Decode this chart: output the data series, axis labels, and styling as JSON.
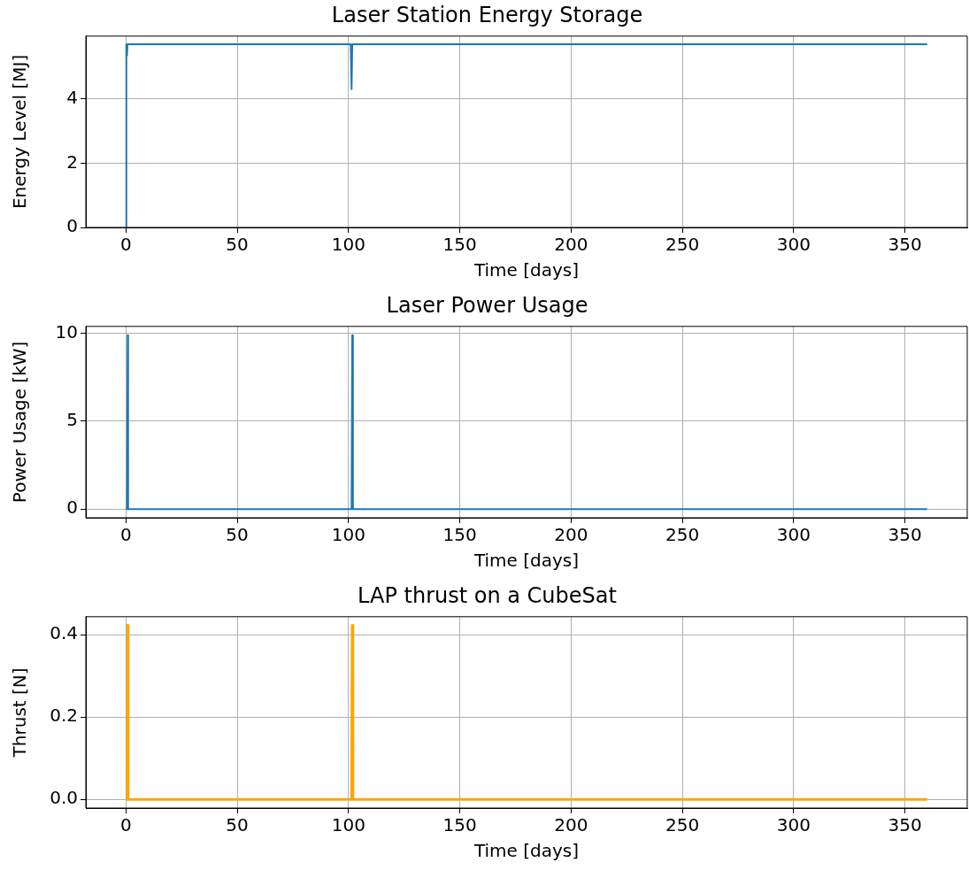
{
  "chart_data": [
    {
      "type": "line",
      "title": "Laser Station Energy Storage",
      "xlabel": "Time [days]",
      "ylabel": "Energy Level [MJ]",
      "x": [
        0,
        0.2,
        0.5,
        0.7,
        101,
        101.4,
        101.7,
        360
      ],
      "series": [
        {
          "color": "#1f77b4",
          "values": [
            0,
            5.7,
            5.35,
            5.7,
            5.7,
            4.3,
            5.7,
            5.7
          ]
        }
      ],
      "xlim": [
        -18,
        378
      ],
      "ylim": [
        0,
        5.95
      ],
      "xticks": [
        0,
        50,
        100,
        150,
        200,
        250,
        300,
        350
      ],
      "yticks": [
        0,
        2,
        4
      ],
      "grid": true,
      "legend": false,
      "marker": "none",
      "line_style": "solid"
    },
    {
      "type": "line",
      "title": "Laser Power Usage",
      "xlabel": "Time [days]",
      "ylabel": "Power Usage [kW]",
      "x": [
        0,
        0.5,
        0.8,
        1,
        101,
        101.4,
        101.7,
        102,
        360
      ],
      "series": [
        {
          "color": "#1f77b4",
          "values": [
            0,
            0,
            9.9,
            0,
            0,
            0,
            9.9,
            0,
            0
          ]
        }
      ],
      "xlim": [
        -18,
        378
      ],
      "ylim": [
        -0.495,
        10.395
      ],
      "xticks": [
        0,
        50,
        100,
        150,
        200,
        250,
        300,
        350
      ],
      "yticks": [
        0,
        5,
        10
      ],
      "grid": true,
      "legend": false,
      "marker": "none",
      "line_style": "solid"
    },
    {
      "type": "line",
      "title": "LAP thrust on a CubeSat",
      "xlabel": "Time [days]",
      "ylabel": "Thrust [N]",
      "x": [
        0,
        0.5,
        0.8,
        1,
        101,
        101.4,
        101.7,
        102,
        360
      ],
      "series": [
        {
          "color": "#ffa500",
          "values": [
            0,
            0,
            0.423,
            0,
            0,
            0,
            0.423,
            0,
            0
          ]
        }
      ],
      "xlim": [
        -18,
        378
      ],
      "ylim": [
        -0.021,
        0.444
      ],
      "xticks": [
        0,
        50,
        100,
        150,
        200,
        250,
        300,
        350
      ],
      "yticks": [
        {
          "value": 0,
          "label": "0.0"
        },
        {
          "value": 0.2,
          "label": "0.2"
        },
        {
          "value": 0.4,
          "label": "0.4"
        }
      ],
      "grid": true,
      "legend": false,
      "marker": "none",
      "line_style": "solid"
    }
  ]
}
